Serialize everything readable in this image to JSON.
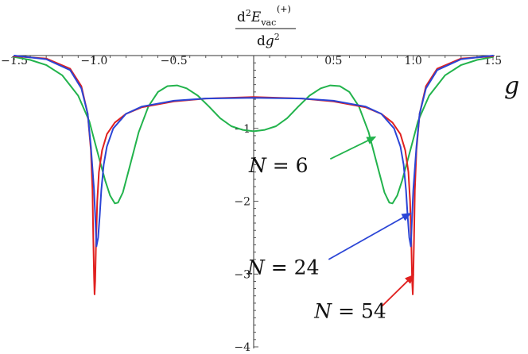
{
  "chart_data": {
    "type": "line",
    "title": "",
    "xlabel": "g",
    "ylabel": {
      "d": "d",
      "sup2": "2",
      "E": "E",
      "sub": "vac",
      "sup": "(+)",
      "den_d": "d",
      "den_g": "g",
      "den_sup2": "2"
    },
    "xlim": [
      -1.5,
      1.5
    ],
    "ylim": [
      -4,
      0
    ],
    "x_ticks": [
      {
        "value": -1.5,
        "label": "−1.5"
      },
      {
        "value": -1.0,
        "label": "−1.0"
      },
      {
        "value": -0.5,
        "label": "−0.5"
      },
      {
        "value": 0.5,
        "label": "0.5"
      },
      {
        "value": 1.0,
        "label": "1.0"
      },
      {
        "value": 1.5,
        "label": "1.5"
      }
    ],
    "y_ticks": [
      {
        "value": -1,
        "label": "−1"
      },
      {
        "value": -2,
        "label": "−2"
      },
      {
        "value": -3,
        "label": "−3"
      },
      {
        "value": -4,
        "label": "−4"
      }
    ],
    "grid": false,
    "series": [
      {
        "name": "N = 6",
        "color": "#22b34c",
        "points": [
          [
            -1.5,
            -0.02
          ],
          [
            -1.4,
            -0.06
          ],
          [
            -1.3,
            -0.13
          ],
          [
            -1.2,
            -0.27
          ],
          [
            -1.1,
            -0.55
          ],
          [
            -1.03,
            -0.9
          ],
          [
            -1.0,
            -1.15
          ],
          [
            -0.97,
            -1.4
          ],
          [
            -0.93,
            -1.72
          ],
          [
            -0.9,
            -1.92
          ],
          [
            -0.87,
            -2.03
          ],
          [
            -0.85,
            -2.02
          ],
          [
            -0.82,
            -1.88
          ],
          [
            -0.78,
            -1.55
          ],
          [
            -0.72,
            -1.05
          ],
          [
            -0.66,
            -0.7
          ],
          [
            -0.6,
            -0.5
          ],
          [
            -0.54,
            -0.42
          ],
          [
            -0.48,
            -0.41
          ],
          [
            -0.42,
            -0.45
          ],
          [
            -0.35,
            -0.55
          ],
          [
            -0.28,
            -0.7
          ],
          [
            -0.21,
            -0.86
          ],
          [
            -0.14,
            -0.97
          ],
          [
            -0.07,
            -1.02
          ],
          [
            0.0,
            -1.04
          ],
          [
            0.07,
            -1.02
          ],
          [
            0.14,
            -0.97
          ],
          [
            0.21,
            -0.86
          ],
          [
            0.28,
            -0.7
          ],
          [
            0.35,
            -0.55
          ],
          [
            0.42,
            -0.45
          ],
          [
            0.48,
            -0.41
          ],
          [
            0.54,
            -0.42
          ],
          [
            0.6,
            -0.5
          ],
          [
            0.66,
            -0.7
          ],
          [
            0.72,
            -1.05
          ],
          [
            0.78,
            -1.55
          ],
          [
            0.82,
            -1.88
          ],
          [
            0.85,
            -2.02
          ],
          [
            0.87,
            -2.03
          ],
          [
            0.9,
            -1.92
          ],
          [
            0.93,
            -1.72
          ],
          [
            0.97,
            -1.4
          ],
          [
            1.0,
            -1.15
          ],
          [
            1.03,
            -0.9
          ],
          [
            1.1,
            -0.55
          ],
          [
            1.2,
            -0.27
          ],
          [
            1.3,
            -0.13
          ],
          [
            1.4,
            -0.06
          ],
          [
            1.5,
            -0.02
          ]
        ]
      },
      {
        "name": "N = 24",
        "color": "#2b45d6",
        "points": [
          [
            -1.5,
            0.0
          ],
          [
            -1.3,
            -0.05
          ],
          [
            -1.15,
            -0.2
          ],
          [
            -1.08,
            -0.45
          ],
          [
            -1.04,
            -0.8
          ],
          [
            -1.02,
            -1.25
          ],
          [
            -1.0,
            -1.85
          ],
          [
            -0.99,
            -2.35
          ],
          [
            -0.985,
            -2.62
          ],
          [
            -0.975,
            -2.5
          ],
          [
            -0.965,
            -2.2
          ],
          [
            -0.955,
            -1.85
          ],
          [
            -0.94,
            -1.5
          ],
          [
            -0.92,
            -1.25
          ],
          [
            -0.88,
            -1.0
          ],
          [
            -0.8,
            -0.8
          ],
          [
            -0.7,
            -0.7
          ],
          [
            -0.5,
            -0.62
          ],
          [
            -0.3,
            -0.59
          ],
          [
            0.0,
            -0.58
          ],
          [
            0.3,
            -0.59
          ],
          [
            0.5,
            -0.62
          ],
          [
            0.7,
            -0.7
          ],
          [
            0.8,
            -0.8
          ],
          [
            0.88,
            -1.0
          ],
          [
            0.92,
            -1.25
          ],
          [
            0.94,
            -1.5
          ],
          [
            0.955,
            -1.85
          ],
          [
            0.965,
            -2.2
          ],
          [
            0.975,
            -2.5
          ],
          [
            0.985,
            -2.62
          ],
          [
            0.99,
            -2.35
          ],
          [
            1.0,
            -1.85
          ],
          [
            1.02,
            -1.25
          ],
          [
            1.04,
            -0.8
          ],
          [
            1.08,
            -0.45
          ],
          [
            1.15,
            -0.2
          ],
          [
            1.3,
            -0.05
          ],
          [
            1.5,
            0.0
          ]
        ]
      },
      {
        "name": "N = 54",
        "color": "#e0201f",
        "points": [
          [
            -1.5,
            -0.01
          ],
          [
            -1.3,
            -0.04
          ],
          [
            -1.15,
            -0.18
          ],
          [
            -1.08,
            -0.42
          ],
          [
            -1.04,
            -0.8
          ],
          [
            -1.02,
            -1.3
          ],
          [
            -1.01,
            -1.85
          ],
          [
            -1.005,
            -2.5
          ],
          [
            -1.0,
            -3.05
          ],
          [
            -0.997,
            -3.28
          ],
          [
            -0.993,
            -3.1
          ],
          [
            -0.988,
            -2.6
          ],
          [
            -0.98,
            -2.0
          ],
          [
            -0.97,
            -1.6
          ],
          [
            -0.95,
            -1.3
          ],
          [
            -0.92,
            -1.08
          ],
          [
            -0.87,
            -0.92
          ],
          [
            -0.8,
            -0.8
          ],
          [
            -0.7,
            -0.71
          ],
          [
            -0.5,
            -0.63
          ],
          [
            -0.3,
            -0.59
          ],
          [
            0.0,
            -0.57
          ],
          [
            0.3,
            -0.59
          ],
          [
            0.5,
            -0.63
          ],
          [
            0.7,
            -0.71
          ],
          [
            0.8,
            -0.8
          ],
          [
            0.87,
            -0.92
          ],
          [
            0.92,
            -1.08
          ],
          [
            0.95,
            -1.3
          ],
          [
            0.97,
            -1.6
          ],
          [
            0.98,
            -2.0
          ],
          [
            0.988,
            -2.6
          ],
          [
            0.993,
            -3.1
          ],
          [
            0.997,
            -3.28
          ],
          [
            1.0,
            -3.05
          ],
          [
            1.005,
            -2.5
          ],
          [
            1.01,
            -1.85
          ],
          [
            1.02,
            -1.3
          ],
          [
            1.04,
            -0.8
          ],
          [
            1.08,
            -0.42
          ],
          [
            1.15,
            -0.18
          ],
          [
            1.3,
            -0.04
          ],
          [
            1.5,
            -0.01
          ]
        ]
      }
    ],
    "annotations": [
      {
        "series": "N = 6",
        "label_var": "N",
        "label_rest": " = 6",
        "text_at": [
          -0.03,
          -1.6
        ],
        "arrow_from": [
          0.48,
          -1.42
        ],
        "arrow_to": [
          0.76,
          -1.12
        ]
      },
      {
        "series": "N = 24",
        "label_var": "N",
        "label_rest": " = 24",
        "text_at": [
          -0.04,
          -3.0
        ],
        "arrow_from": [
          0.47,
          -2.8
        ],
        "arrow_to": [
          0.98,
          -2.17
        ]
      },
      {
        "series": "N = 54",
        "label_var": "N",
        "label_rest": " = 54",
        "text_at": [
          0.38,
          -3.6
        ],
        "arrow_from": [
          0.8,
          -3.45
        ],
        "arrow_to": [
          1.0,
          -3.02
        ]
      }
    ]
  }
}
